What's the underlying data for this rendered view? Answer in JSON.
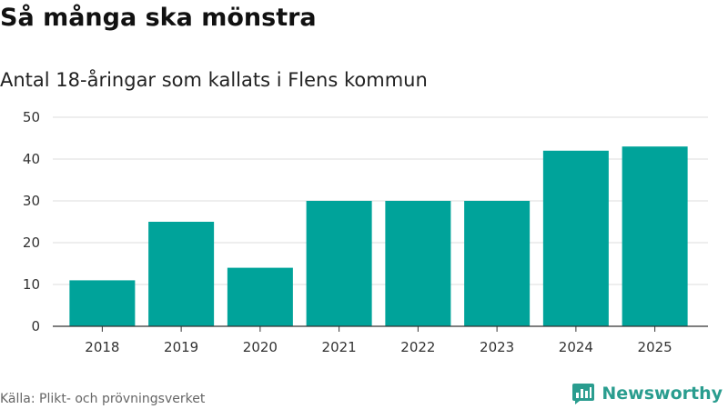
{
  "header": {
    "title": "Så många ska mönstra",
    "subtitle": "Antal 18-åringar som kallats i Flens kommun"
  },
  "footer": {
    "source": "Källa: Plikt- och prövningsverket",
    "brand": "Newsworthy",
    "brand_icon": "newsworthy-logo-icon"
  },
  "colors": {
    "bar": "#00a39a",
    "grid": "#dddddd",
    "axis": "#333333",
    "brand": "#2a9d8f"
  },
  "chart_data": {
    "type": "bar",
    "categories": [
      "2018",
      "2019",
      "2020",
      "2021",
      "2022",
      "2023",
      "2024",
      "2025"
    ],
    "values": [
      11,
      25,
      14,
      30,
      30,
      30,
      42,
      43
    ],
    "title": "Så många ska mönstra",
    "subtitle": "Antal 18-åringar som kallats i Flens kommun",
    "xlabel": "",
    "ylabel": "",
    "ylim": [
      0,
      50
    ],
    "yticks": [
      0,
      10,
      20,
      30,
      40,
      50
    ],
    "grid": true,
    "legend": "none"
  }
}
